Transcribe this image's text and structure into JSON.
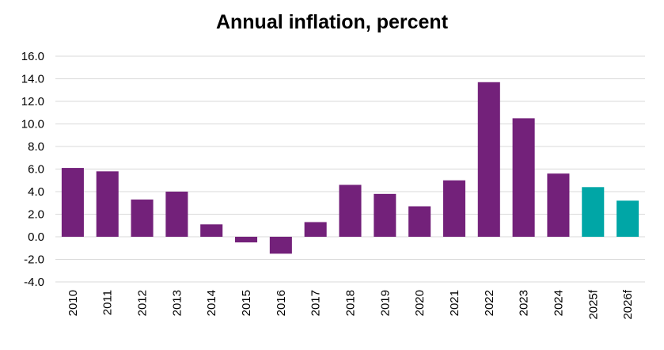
{
  "chart_data": {
    "type": "bar",
    "title": "Annual inflation, percent",
    "xlabel": "",
    "ylabel": "",
    "ylim": [
      -4.0,
      16.0
    ],
    "yticks": [
      "16.0",
      "14.0",
      "12.0",
      "10.0",
      "8.0",
      "6.0",
      "4.0",
      "2.0",
      "0.0",
      "-2.0",
      "-4.0"
    ],
    "categories": [
      "2010",
      "2011",
      "2012",
      "2013",
      "2014",
      "2015",
      "2016",
      "2017",
      "2018",
      "2019",
      "2020",
      "2021",
      "2022",
      "2023",
      "2024",
      "2025f",
      "2026f"
    ],
    "values": [
      6.1,
      5.8,
      3.3,
      4.0,
      1.1,
      -0.5,
      -1.5,
      1.3,
      4.6,
      3.8,
      2.7,
      5.0,
      13.7,
      10.5,
      5.6,
      4.4,
      3.2
    ],
    "forecast": [
      false,
      false,
      false,
      false,
      false,
      false,
      false,
      false,
      false,
      false,
      false,
      false,
      false,
      false,
      false,
      true,
      true
    ],
    "grid": true,
    "legend": "none",
    "colors": {
      "actual": "#73217a",
      "forecast": "#00a6a6",
      "grid": "#d9d9d9"
    }
  }
}
